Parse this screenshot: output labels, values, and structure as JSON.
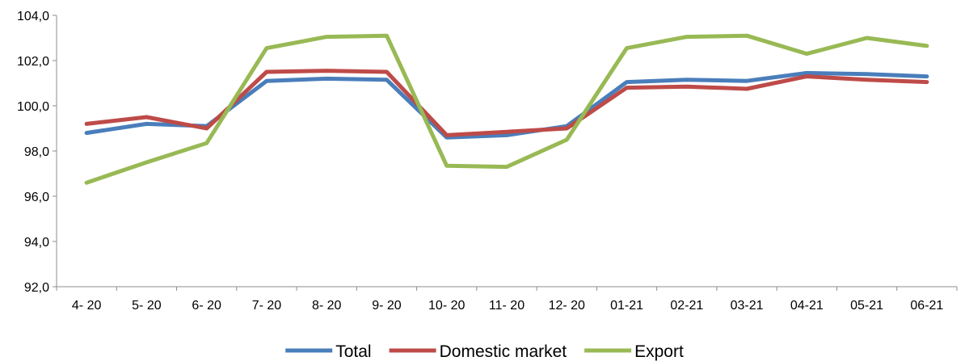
{
  "chart_data": {
    "type": "line",
    "categories": [
      "4- 20",
      "5- 20",
      "6- 20",
      "7- 20",
      "8- 20",
      "9- 20",
      "10- 20",
      "11- 20",
      "12- 20",
      "01-21",
      "02-21",
      "03-21",
      "04-21",
      "05-21",
      "06-21"
    ],
    "series": [
      {
        "name": "Total",
        "color": "#4a7ebb",
        "values": [
          98.8,
          99.2,
          99.1,
          101.1,
          101.2,
          101.15,
          98.6,
          98.7,
          99.1,
          101.05,
          101.15,
          101.1,
          101.45,
          101.4,
          101.3
        ]
      },
      {
        "name": "Domestic market",
        "color": "#be4b48",
        "values": [
          99.2,
          99.5,
          99.0,
          101.5,
          101.55,
          101.5,
          98.7,
          98.85,
          99.0,
          100.8,
          100.85,
          100.75,
          101.3,
          101.15,
          101.05
        ]
      },
      {
        "name": "Export",
        "color": "#98b954",
        "values": [
          96.6,
          97.5,
          98.35,
          102.55,
          103.05,
          103.1,
          97.35,
          97.3,
          98.5,
          102.55,
          103.05,
          103.1,
          102.3,
          103.0,
          102.65
        ]
      }
    ],
    "y_ticks": [
      "92,0",
      "94,0",
      "96,0",
      "98,0",
      "100,0",
      "102,0",
      "104,0"
    ],
    "ylim": [
      92,
      104
    ],
    "grid": false,
    "legend_position": "bottom"
  }
}
